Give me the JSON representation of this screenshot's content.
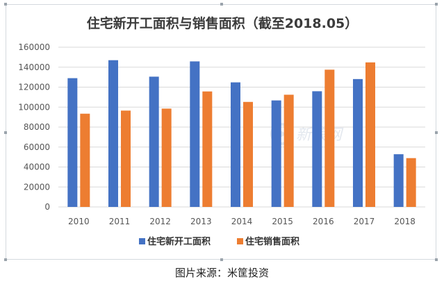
{
  "caption": "图片来源：米筐投资",
  "watermark": "新浪网",
  "colors": {
    "series1": "#4472c4",
    "series2": "#ed7d31",
    "grid": "#d9d9d9",
    "border": "#d4d9de"
  },
  "chart_data": {
    "type": "bar",
    "title": "住宅新开工面积与销售面积（截至2018.05）",
    "xlabel": "",
    "ylabel": "",
    "categories": [
      "2010",
      "2011",
      "2012",
      "2013",
      "2014",
      "2015",
      "2016",
      "2017",
      "2018"
    ],
    "ylim": [
      0,
      160000
    ],
    "yticks": [
      "0",
      "20000",
      "40000",
      "60000",
      "80000",
      "100000",
      "120000",
      "140000",
      "160000"
    ],
    "grid": true,
    "legend": "bottom",
    "series": [
      {
        "name": "住宅新开工面积",
        "values": [
          129000,
          147000,
          130500,
          145800,
          124800,
          106700,
          115900,
          128100,
          52800
        ]
      },
      {
        "name": "住宅销售面积",
        "values": [
          93400,
          96500,
          98500,
          115700,
          105200,
          112400,
          137500,
          144800,
          48900
        ]
      }
    ]
  }
}
